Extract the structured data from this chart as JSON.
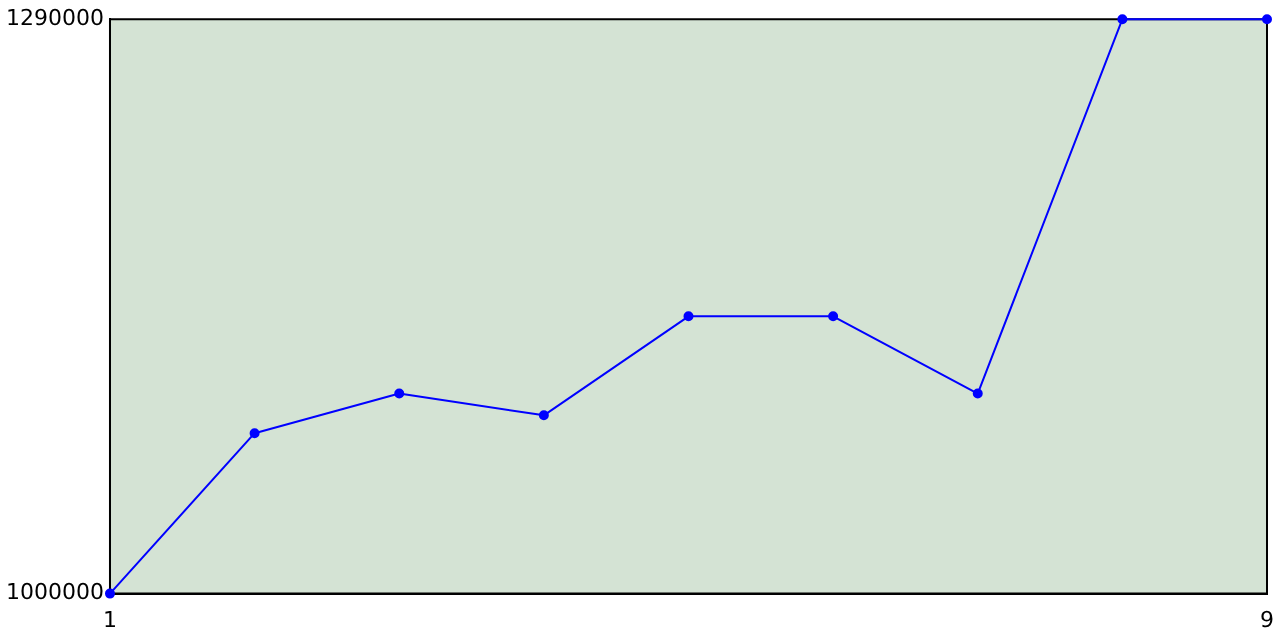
{
  "chart_data": {
    "type": "line",
    "x": [
      1,
      2,
      3,
      4,
      5,
      6,
      7,
      8,
      9
    ],
    "series": [
      {
        "color": "#0000ff",
        "values": [
          1000000,
          1081000,
          1101000,
          1090000,
          1140000,
          1140000,
          1101000,
          1290000,
          1290000
        ]
      }
    ],
    "xlim": [
      1,
      9
    ],
    "xticks": [
      1,
      9
    ],
    "ylim": [
      1000000,
      1290000
    ],
    "yticks": [
      1000000,
      1290000
    ],
    "grid": false,
    "legend": false,
    "marker": "circle",
    "line_style": "solid"
  }
}
